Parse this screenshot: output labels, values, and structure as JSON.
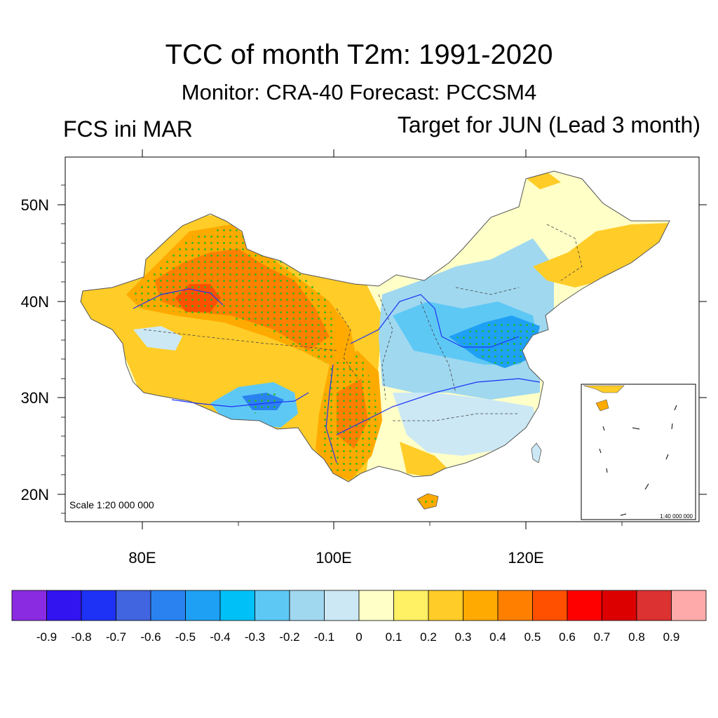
{
  "title": "TCC of month T2m: 1991-2020",
  "subtitle": "Monitor: CRA-40   Forecast: PCCSM4",
  "left_string": "FCS ini MAR",
  "right_string": "Target for JUN (Lead 3 month)",
  "axes": {
    "lat_labels": [
      "50N",
      "40N",
      "30N",
      "20N"
    ],
    "lon_labels": [
      "80E",
      "100E",
      "120E"
    ]
  },
  "scale_main": "Scale 1:20 000 000",
  "scale_inset": "1:40 000 000",
  "colorbar": {
    "colors": [
      "#8a2be2",
      "#3214f0",
      "#1e32f5",
      "#4164e0",
      "#2a82f0",
      "#1ea0f5",
      "#00c0f8",
      "#5ec8f5",
      "#a0d8f0",
      "#cce8f5",
      "#ffffc8",
      "#fff064",
      "#ffcc28",
      "#ffaa00",
      "#ff8000",
      "#ff5000",
      "#ff0000",
      "#dc0000",
      "#dc3232",
      "#ffaaaa"
    ],
    "labels": [
      "-0.9",
      "-0.8",
      "-0.7",
      "-0.6",
      "-0.5",
      "-0.4",
      "-0.3",
      "-0.2",
      "-0.1",
      "0",
      "0.1",
      "0.2",
      "0.3",
      "0.4",
      "0.5",
      "0.6",
      "0.7",
      "0.8",
      "0.9"
    ]
  },
  "map_fill": {
    "base": "#ffffc8",
    "regions": [
      {
        "name": "northwest-warm",
        "color": "#ffcc28"
      },
      {
        "name": "xinjiang-hot",
        "color": "#ffaa00"
      },
      {
        "name": "tarim-core",
        "color": "#ff8000"
      },
      {
        "name": "tarim-peak",
        "color": "#ff5000"
      },
      {
        "name": "southwest-warm",
        "color": "#ffaa00"
      },
      {
        "name": "tibet-cool",
        "color": "#5ec8f5"
      },
      {
        "name": "north-china-cool",
        "color": "#a0d8f0"
      },
      {
        "name": "shandong-cold",
        "color": "#1ea0f5"
      },
      {
        "name": "northeast-warm",
        "color": "#ffcc28"
      },
      {
        "name": "south-cool",
        "color": "#cce8f5"
      }
    ],
    "significance_dot_color": "#22bb22",
    "river_color": "#1e32f5",
    "border_color": "#333333"
  }
}
